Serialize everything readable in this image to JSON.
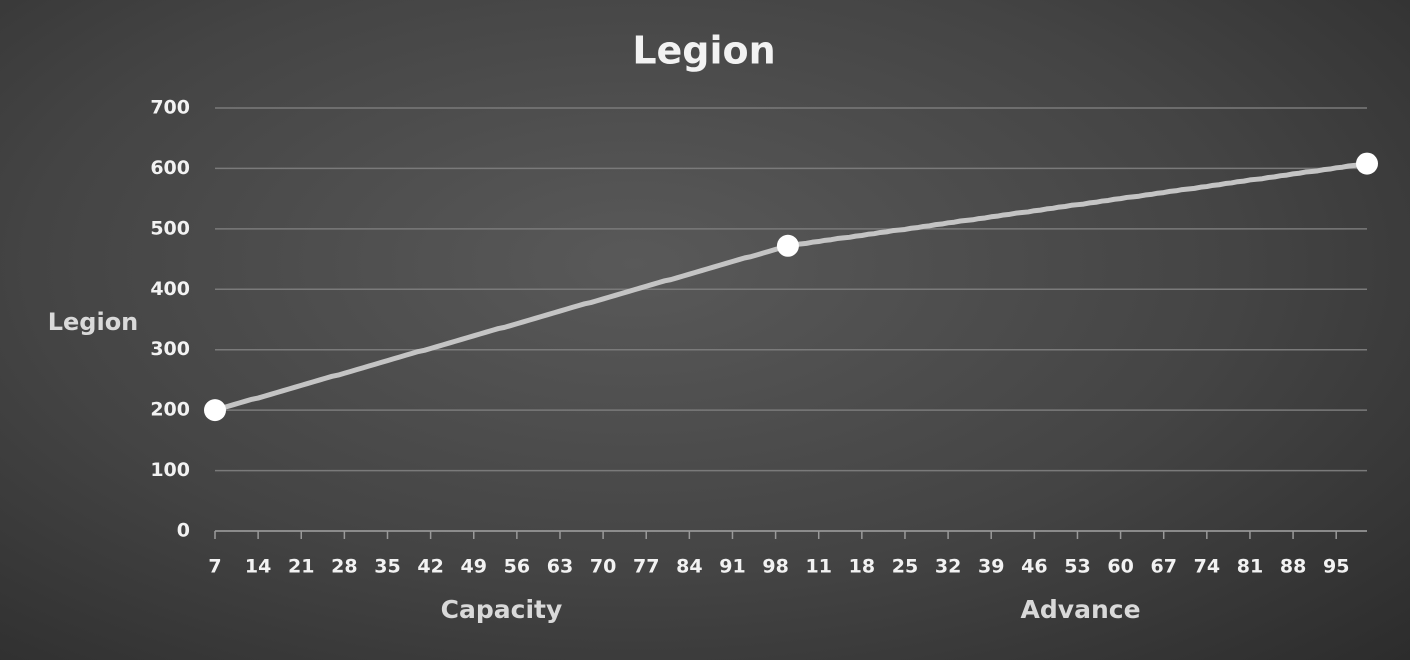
{
  "chart_data": {
    "type": "line",
    "title": "Legion",
    "y_label": "Legion",
    "color": "#c4c4c4",
    "grid": true,
    "ylim": [
      0,
      700
    ],
    "yticks": [
      0,
      100,
      200,
      300,
      400,
      500,
      600,
      700
    ],
    "groups": [
      {
        "label": "Capacity",
        "categories": [
          "7",
          null,
          null,
          null,
          null,
          null,
          null,
          "14",
          null,
          null,
          null,
          null,
          null,
          null,
          "21",
          null,
          null,
          null,
          null,
          null,
          null,
          "28",
          null,
          null,
          null,
          null,
          null,
          null,
          "35",
          null,
          null,
          null,
          null,
          null,
          null,
          "42",
          null,
          null,
          null,
          null,
          null,
          null,
          "49",
          null,
          null,
          null,
          null,
          null,
          null,
          "56",
          null,
          null,
          null,
          null,
          null,
          null,
          "63",
          null,
          null,
          null,
          null,
          null,
          null,
          "70",
          null,
          null,
          null,
          null,
          null,
          null,
          "77",
          null,
          null,
          null,
          null,
          null,
          null,
          "84",
          null,
          null,
          null,
          null,
          null,
          null,
          "91",
          null,
          null,
          null,
          null,
          null,
          null,
          "98",
          null,
          null
        ]
      },
      {
        "label": "Advance",
        "categories": [
          null,
          null,
          null,
          null,
          "11",
          null,
          null,
          null,
          null,
          null,
          null,
          "18",
          null,
          null,
          null,
          null,
          null,
          null,
          "25",
          null,
          null,
          null,
          null,
          null,
          null,
          "32",
          null,
          null,
          null,
          null,
          null,
          null,
          "39",
          null,
          null,
          null,
          null,
          null,
          null,
          "46",
          null,
          null,
          null,
          null,
          null,
          null,
          "53",
          null,
          null,
          null,
          null,
          null,
          null,
          "60",
          null,
          null,
          null,
          null,
          null,
          null,
          "67",
          null,
          null,
          null,
          null,
          null,
          null,
          "74",
          null,
          null,
          null,
          null,
          null,
          null,
          "81",
          null,
          null,
          null,
          null,
          null,
          null,
          "88",
          null,
          null,
          null,
          null,
          null,
          null,
          "95",
          null,
          null,
          null,
          null,
          null
        ]
      }
    ],
    "values": [
      200,
      203,
      206,
      209,
      212,
      215,
      218,
      220,
      223,
      226,
      229,
      232,
      235,
      238,
      241,
      244,
      247,
      250,
      253,
      256,
      258,
      261,
      264,
      267,
      270,
      273,
      276,
      279,
      282,
      285,
      288,
      291,
      294,
      297,
      299,
      302,
      305,
      308,
      311,
      314,
      317,
      320,
      323,
      326,
      329,
      332,
      335,
      337,
      340,
      343,
      346,
      349,
      352,
      355,
      358,
      361,
      364,
      367,
      370,
      373,
      376,
      378,
      381,
      384,
      387,
      390,
      393,
      396,
      399,
      402,
      405,
      408,
      411,
      414,
      416,
      419,
      422,
      425,
      428,
      431,
      434,
      437,
      440,
      443,
      446,
      449,
      452,
      454,
      457,
      460,
      463,
      466,
      469,
      472,
      473,
      475,
      476,
      478,
      479,
      481,
      482,
      484,
      485,
      486,
      488,
      489,
      491,
      492,
      494,
      495,
      497,
      498,
      499,
      501,
      502,
      504,
      505,
      507,
      508,
      510,
      511,
      513,
      514,
      515,
      517,
      518,
      520,
      521,
      523,
      524,
      526,
      527,
      528,
      530,
      531,
      533,
      534,
      536,
      537,
      539,
      540,
      541,
      543,
      544,
      546,
      547,
      549,
      550,
      552,
      553,
      554,
      556,
      557,
      559,
      560,
      562,
      563,
      565,
      566,
      567,
      569,
      570,
      572,
      573,
      575,
      576,
      578,
      579,
      581,
      582,
      583,
      585,
      586,
      588,
      589,
      591,
      592,
      594,
      595,
      596,
      598,
      599,
      601,
      602,
      604,
      605,
      607,
      608
    ]
  }
}
